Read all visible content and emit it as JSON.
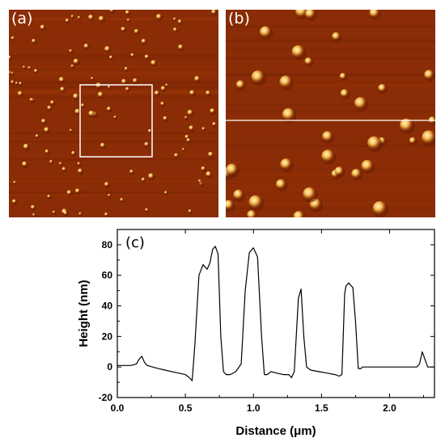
{
  "panels": {
    "a": {
      "label": "(a)"
    },
    "b": {
      "label": "(b)"
    },
    "c": {
      "label": "(c)"
    }
  },
  "colors": {
    "afm_background": "#8a2c05",
    "afm_mid": "#b35a10",
    "afm_peak": "#fff6c8",
    "marker_line": "#ffffff",
    "profile_line": "#000000"
  },
  "chart_data": {
    "type": "line",
    "title": "",
    "xlabel": "Distance (μm)",
    "ylabel": "Height (nm)",
    "xlim": [
      0.0,
      2.33
    ],
    "ylim": [
      -20,
      90
    ],
    "xticks": [
      0.0,
      0.5,
      1.0,
      1.5,
      2.0
    ],
    "xtick_labels": [
      "0.0",
      "0.5",
      "1.0",
      "1.5",
      "2.0"
    ],
    "yticks": [
      -20,
      0,
      20,
      40,
      60,
      80
    ],
    "ytick_labels": [
      "-20",
      "0",
      "20",
      "40",
      "60",
      "80"
    ],
    "grid": false,
    "series": [
      {
        "x": [
          0.0,
          0.05,
          0.1,
          0.14,
          0.16,
          0.18,
          0.2,
          0.22,
          0.26,
          0.3,
          0.35,
          0.4,
          0.45,
          0.5,
          0.53,
          0.55,
          0.57,
          0.6,
          0.63,
          0.66,
          0.68,
          0.7,
          0.72,
          0.74,
          0.76,
          0.78,
          0.8,
          0.83,
          0.87,
          0.91,
          0.94,
          0.97,
          1.0,
          1.03,
          1.06,
          1.08,
          1.1,
          1.13,
          1.17,
          1.22,
          1.26,
          1.28,
          1.3,
          1.33,
          1.35,
          1.37,
          1.39,
          1.42,
          1.48,
          1.54,
          1.6,
          1.63,
          1.65,
          1.67,
          1.68,
          1.7,
          1.73,
          1.75,
          1.77,
          1.79,
          1.8,
          1.85,
          1.9,
          2.0,
          2.1,
          2.2,
          2.22,
          2.24,
          2.26,
          2.28,
          2.33
        ],
        "y": [
          1,
          1,
          1,
          2,
          5,
          7,
          3,
          1,
          0,
          -1,
          -2,
          -3,
          -4,
          -5,
          -7,
          -9,
          15,
          60,
          67,
          64,
          68,
          77,
          79,
          74,
          20,
          -3,
          -5,
          -5,
          -3,
          2,
          50,
          75,
          78,
          72,
          20,
          -5,
          -5,
          -3,
          -4,
          -5,
          -5,
          -7,
          -3,
          45,
          51,
          20,
          0,
          -2,
          -3,
          -4,
          -5,
          -6,
          -5,
          48,
          53,
          55,
          52,
          30,
          -1,
          -1,
          0,
          0,
          0,
          0,
          0,
          0,
          2,
          10,
          5,
          0,
          0
        ]
      }
    ]
  }
}
